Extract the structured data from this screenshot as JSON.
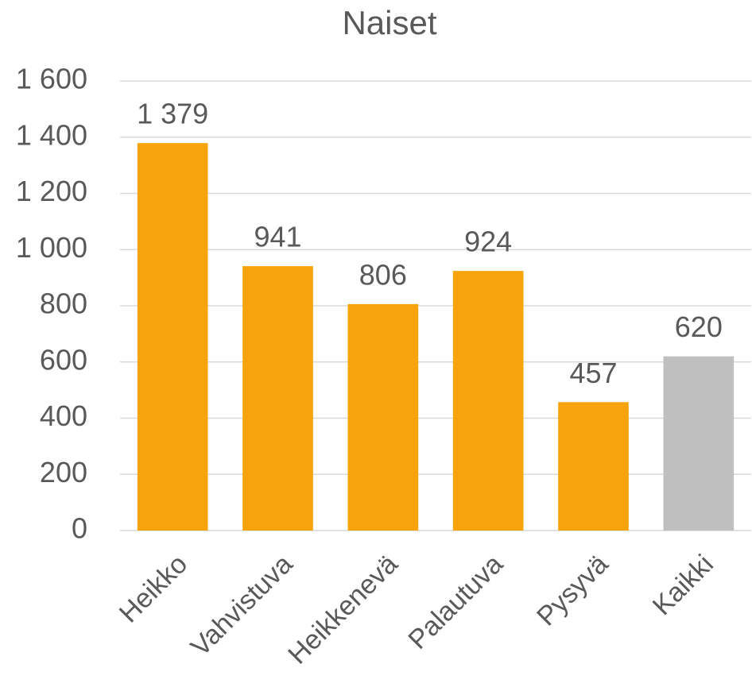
{
  "chart_data": {
    "type": "bar",
    "title": "Naiset",
    "categories": [
      "Heikko",
      "Vahvistuva",
      "Heikkenevä",
      "Palautuva",
      "Pysyvä",
      "Kaikki"
    ],
    "values": [
      1379,
      941,
      806,
      924,
      457,
      620
    ],
    "value_labels": [
      "1 379",
      "941",
      "806",
      "924",
      "457",
      "620"
    ],
    "colors": [
      "#f7a30c",
      "#f7a30c",
      "#f7a30c",
      "#f7a30c",
      "#f7a30c",
      "#bfbfbf"
    ],
    "ylim": [
      0,
      1600
    ],
    "yticks": [
      0,
      200,
      400,
      600,
      800,
      {
        "value": 1000,
        "label": "1 000"
      },
      {
        "value": 1200,
        "label": "1 200"
      },
      {
        "value": 1400,
        "label": "1 400"
      },
      {
        "value": 1600,
        "label": "1 600"
      }
    ],
    "grid": true
  }
}
